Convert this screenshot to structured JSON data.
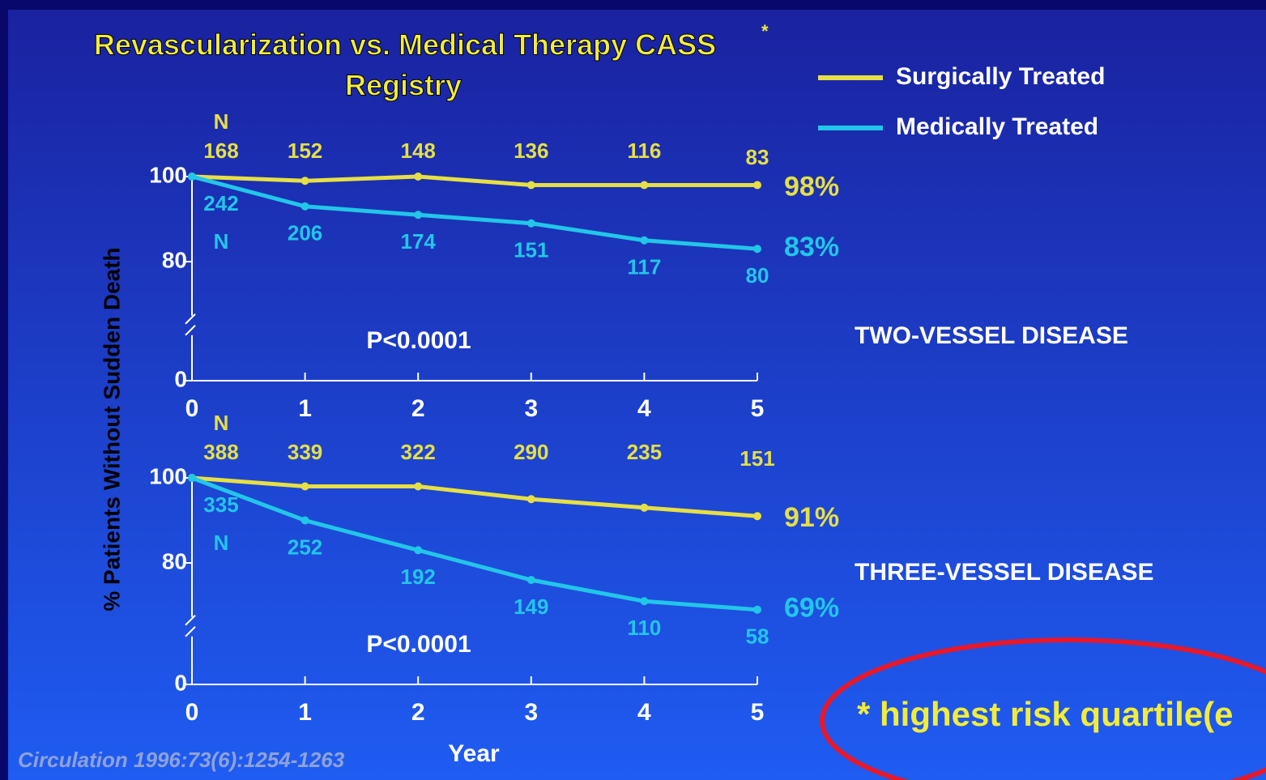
{
  "header": {
    "title": "Revascularization vs. Medical Therapy CASS",
    "title_note": "*",
    "title_line2": "Registry"
  },
  "y_label": "% Patients Without Sudden Death",
  "x_label": "Year",
  "citation": "Circulation 1996:73(6):1254-1263",
  "footnote": "* highest risk quartile(e",
  "chart_data": [
    {
      "type": "line",
      "panel_label": "TWO-VESSEL DISEASE",
      "annotation": "P<0.0001",
      "x": [
        0,
        1,
        2,
        3,
        4,
        5
      ],
      "xlim": [
        0,
        5
      ],
      "xticks": [
        0,
        1,
        2,
        3,
        4,
        5
      ],
      "ylim": [
        0,
        100
      ],
      "yticks": [
        0,
        80,
        100
      ],
      "y_break": [
        0,
        65
      ],
      "series": [
        {
          "name": "Surgically Treated",
          "color": "#e6df45",
          "values": [
            100,
            99,
            100,
            98,
            98,
            98
          ],
          "n_title": "N",
          "n": [
            168,
            152,
            148,
            136,
            116,
            83
          ],
          "end_label": "98%"
        },
        {
          "name": "Medically Treated",
          "color": "#22c6e8",
          "values": [
            100,
            93,
            91,
            89,
            85,
            83
          ],
          "n_title": "N",
          "n": [
            242,
            206,
            174,
            151,
            117,
            80
          ],
          "end_label": "83%"
        }
      ]
    },
    {
      "type": "line",
      "panel_label": "THREE-VESSEL DISEASE",
      "annotation": "P<0.0001",
      "x": [
        0,
        1,
        2,
        3,
        4,
        5
      ],
      "xlim": [
        0,
        5
      ],
      "xticks": [
        0,
        1,
        2,
        3,
        4,
        5
      ],
      "ylim": [
        0,
        100
      ],
      "yticks": [
        0,
        80,
        100
      ],
      "y_break": [
        0,
        65
      ],
      "series": [
        {
          "color": "#e6df45",
          "values": [
            100,
            98,
            98,
            95,
            93,
            91
          ],
          "n_title": "N",
          "n": [
            388,
            339,
            322,
            290,
            235,
            151
          ],
          "end_label": "91%"
        },
        {
          "color": "#22c6e8",
          "values": [
            100,
            90,
            83,
            76,
            71,
            69
          ],
          "n_title": "N",
          "n": [
            335,
            252,
            192,
            149,
            110,
            58
          ],
          "end_label": "69%"
        }
      ]
    }
  ]
}
